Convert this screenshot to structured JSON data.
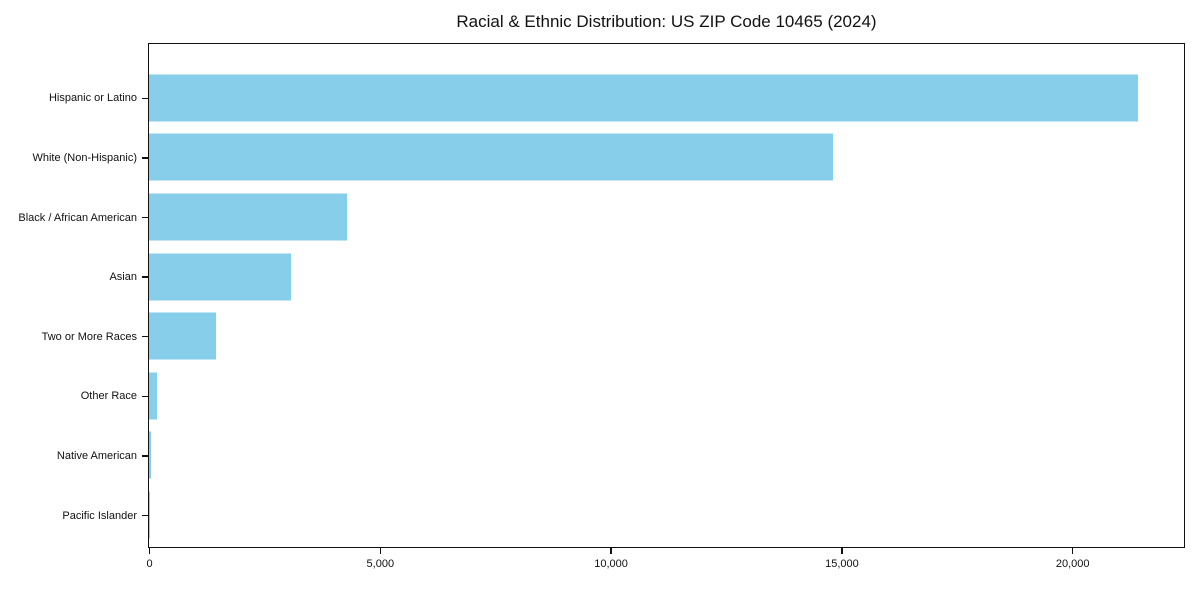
{
  "title": "Racial & Ethnic Distribution: US ZIP Code 10465 (2024)",
  "colors": {
    "bar": "#87CEEB",
    "spine": "#111111",
    "text": "#111111",
    "background": "#ffffff"
  },
  "chart_data": {
    "type": "bar",
    "orientation": "horizontal",
    "title": "Racial & Ethnic Distribution: US ZIP Code 10465 (2024)",
    "xlabel": "",
    "ylabel": "",
    "categories": [
      "Hispanic or Latino",
      "White (Non-Hispanic)",
      "Black / African American",
      "Asian",
      "Two or More Races",
      "Other Race",
      "Native American",
      "Pacific Islander"
    ],
    "values": [
      21400,
      14800,
      4280,
      3080,
      1460,
      170,
      40,
      10
    ],
    "xlim": [
      0,
      22400
    ],
    "xticks": [
      0,
      5000,
      10000,
      15000,
      20000
    ],
    "xtick_labels": [
      "0",
      "5,000",
      "10,000",
      "15,000",
      "20,000"
    ],
    "bar_color": "#87CEEB",
    "grid": false,
    "legend": null,
    "frame": "full-box"
  }
}
